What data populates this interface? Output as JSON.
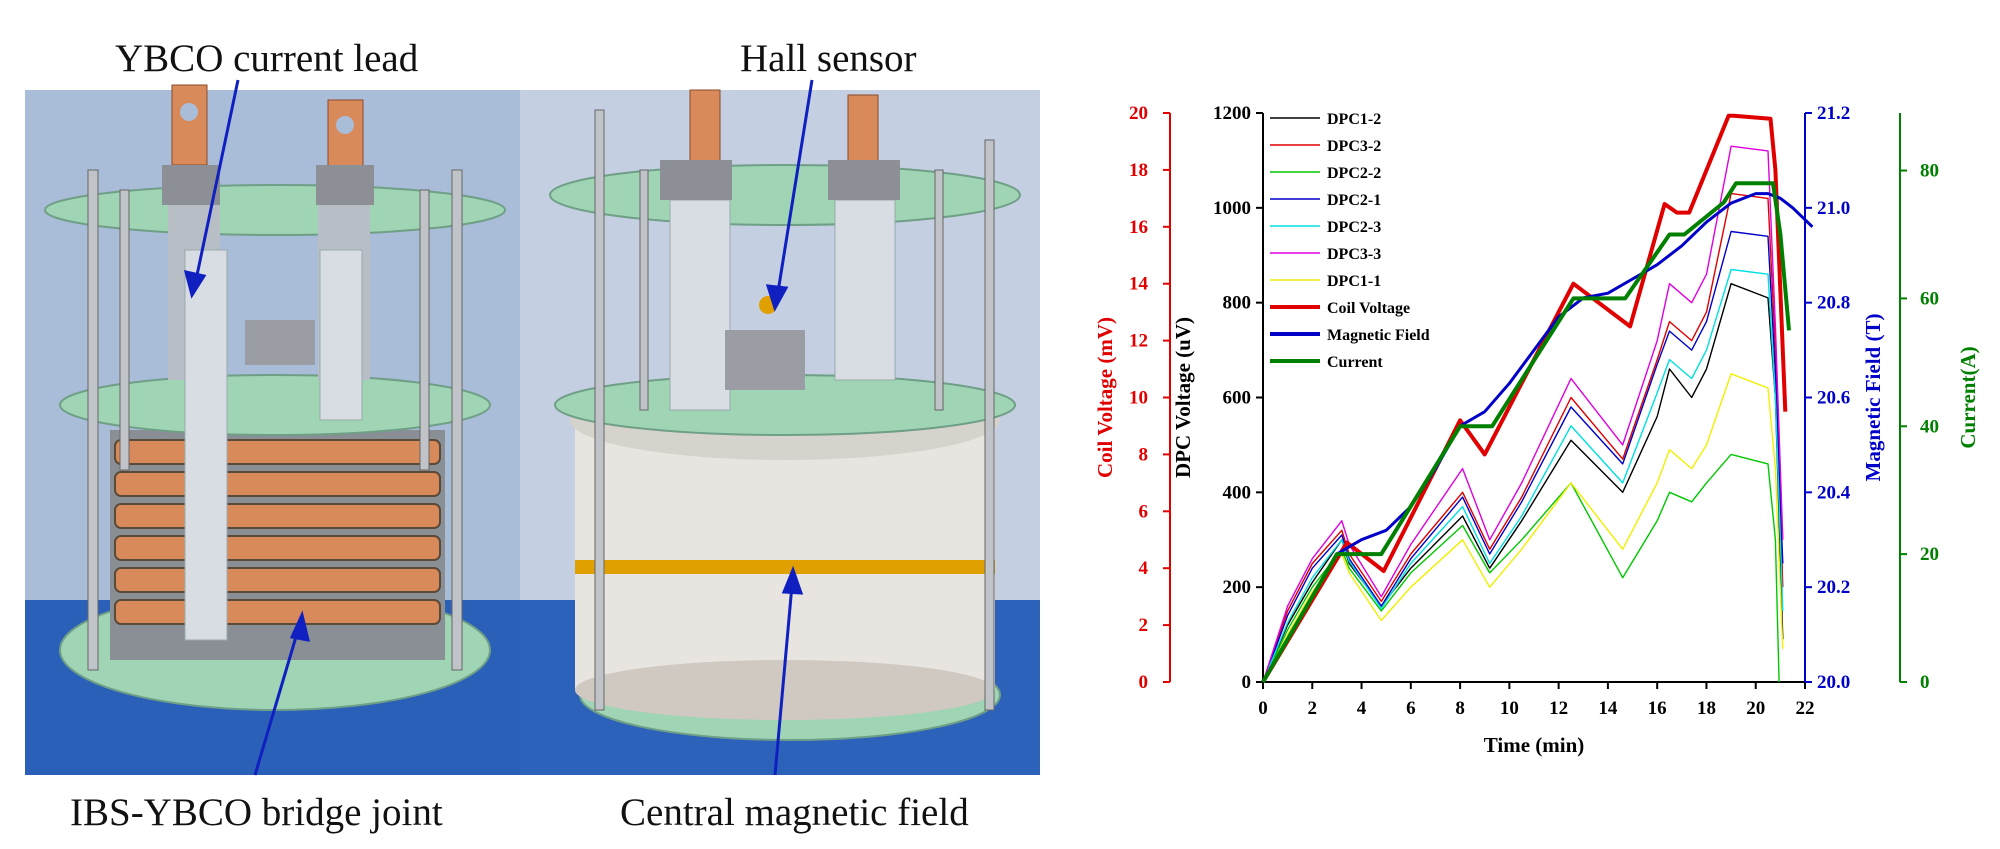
{
  "photo": {
    "labels": {
      "ybco_lead": "YBCO current lead",
      "hall_sensor": "Hall sensor",
      "bridge_joint": "IBS-YBCO bridge joint",
      "central_field": "Central magnetic field"
    },
    "colors": {
      "background": "#9fb6d6",
      "plate": "#9fd4b4",
      "copper": "#d98a5a",
      "foil": "#cfd6de",
      "coil": "#e8e4e0",
      "tape": "#e0a000",
      "arrow": "#1020c0"
    }
  },
  "chart_data": {
    "type": "line",
    "xlabel": "Time (min)",
    "xlim": [
      0,
      22
    ],
    "xticks": [
      0,
      2,
      4,
      6,
      8,
      10,
      12,
      14,
      16,
      18,
      20,
      22
    ],
    "axes": {
      "coil": {
        "label": "Coil Voltage (mV)",
        "lim": [
          0,
          20
        ],
        "ticks": [
          0,
          2,
          4,
          6,
          8,
          10,
          12,
          14,
          16,
          18,
          20
        ],
        "color": "#e00000"
      },
      "dpc": {
        "label": "DPC Voltage (uV)",
        "lim": [
          0,
          1200
        ],
        "ticks": [
          0,
          200,
          400,
          600,
          800,
          1000,
          1200
        ],
        "color": "#000000"
      },
      "field": {
        "label": "Magnetic Field (T)",
        "lim": [
          20.0,
          21.2
        ],
        "ticks": [
          "20.0",
          "20.2",
          "20.4",
          "20.6",
          "20.8",
          "21.0",
          "21.2"
        ],
        "color": "#0000c8"
      },
      "current": {
        "label": "Current(A)",
        "lim": [
          0,
          89
        ],
        "ticks": [
          0,
          20,
          40,
          60,
          80
        ],
        "color": "#008000"
      }
    },
    "series": [
      {
        "name": "DPC1-2",
        "axis": "dpc",
        "color": "#000000",
        "width": 1.4,
        "x": [
          0,
          1,
          2,
          3.2,
          3.5,
          4.8,
          6,
          8.1,
          9.2,
          10.5,
          12.5,
          14.6,
          16,
          16.5,
          17.4,
          18,
          19,
          20.5,
          20.8,
          21.1
        ],
        "y": [
          0,
          120,
          210,
          300,
          250,
          160,
          240,
          350,
          240,
          340,
          510,
          400,
          560,
          660,
          600,
          660,
          840,
          810,
          600,
          90
        ]
      },
      {
        "name": "DPC3-2",
        "axis": "dpc",
        "color": "#e00000",
        "width": 1.4,
        "x": [
          0,
          1,
          2,
          3.2,
          3.5,
          4.8,
          6,
          8.1,
          9.2,
          10.5,
          12.5,
          14.6,
          16,
          16.5,
          17.4,
          18,
          19,
          20.5,
          20.8,
          21.1
        ],
        "y": [
          0,
          150,
          250,
          320,
          270,
          170,
          270,
          400,
          280,
          390,
          600,
          470,
          680,
          760,
          720,
          780,
          1030,
          1020,
          700,
          200
        ]
      },
      {
        "name": "DPC2-2",
        "axis": "dpc",
        "color": "#00c800",
        "width": 1.4,
        "x": [
          0,
          1,
          2,
          3.2,
          3.5,
          4.8,
          6,
          8.1,
          9.2,
          10.5,
          12.5,
          14.6,
          16,
          16.5,
          17.4,
          18,
          19,
          20.5,
          20.8,
          20.95
        ],
        "y": [
          0,
          110,
          200,
          280,
          240,
          150,
          230,
          330,
          230,
          300,
          420,
          220,
          340,
          400,
          380,
          420,
          480,
          460,
          300,
          0
        ]
      },
      {
        "name": "DPC2-1",
        "axis": "dpc",
        "color": "#0000c8",
        "width": 1.4,
        "x": [
          0,
          1,
          2,
          3.2,
          3.5,
          4.8,
          6,
          8.1,
          9.2,
          10.5,
          12.5,
          14.6,
          16,
          16.5,
          17.4,
          18,
          19,
          20.5,
          20.8,
          21.1
        ],
        "y": [
          0,
          140,
          240,
          310,
          260,
          160,
          260,
          390,
          270,
          380,
          580,
          460,
          670,
          740,
          700,
          760,
          950,
          940,
          650,
          250
        ]
      },
      {
        "name": "DPC2-3",
        "axis": "dpc",
        "color": "#00e0e0",
        "width": 1.4,
        "x": [
          0,
          1,
          2,
          3.2,
          3.5,
          4.8,
          6,
          8.1,
          9.2,
          10.5,
          12.5,
          14.6,
          16,
          16.5,
          17.4,
          18,
          19,
          20.5,
          20.8,
          21.1
        ],
        "y": [
          0,
          125,
          220,
          300,
          255,
          155,
          250,
          370,
          250,
          350,
          540,
          420,
          610,
          680,
          640,
          700,
          870,
          860,
          600,
          150
        ]
      },
      {
        "name": "DPC3-3",
        "axis": "dpc",
        "color": "#e000e0",
        "width": 1.4,
        "x": [
          0,
          1,
          2,
          3.2,
          3.5,
          4.8,
          6,
          8.1,
          9.2,
          10.5,
          12.5,
          14.6,
          16,
          16.5,
          17.4,
          18,
          19,
          20.5,
          20.8,
          21.1
        ],
        "y": [
          0,
          160,
          260,
          340,
          290,
          180,
          290,
          450,
          300,
          420,
          640,
          500,
          720,
          840,
          800,
          860,
          1130,
          1120,
          750,
          300
        ]
      },
      {
        "name": "DPC1-1",
        "axis": "dpc",
        "color": "#f0f000",
        "width": 1.4,
        "x": [
          0,
          1,
          2,
          3.2,
          3.5,
          4.8,
          6,
          8.1,
          9.2,
          10.5,
          12.5,
          14.6,
          16,
          16.5,
          17.4,
          18,
          19,
          20.5,
          20.8,
          21.1
        ],
        "y": [
          0,
          100,
          190,
          270,
          230,
          130,
          200,
          300,
          200,
          280,
          420,
          280,
          420,
          490,
          450,
          500,
          650,
          620,
          450,
          70
        ]
      },
      {
        "name": "Coil Voltage",
        "axis": "coil",
        "color": "#e00000",
        "width": 4,
        "x": [
          0,
          3.4,
          4.9,
          8,
          9,
          12.6,
          14.9,
          16.3,
          16.8,
          17.3,
          18.9,
          19.1,
          20.6,
          20.8,
          21.2
        ],
        "y": [
          0,
          4.9,
          3.9,
          9.2,
          8.0,
          14.0,
          12.5,
          16.8,
          16.5,
          16.5,
          19.9,
          19.9,
          19.8,
          18.0,
          9.5
        ]
      },
      {
        "name": "Magnetic Field",
        "axis": "field",
        "color": "#0000c8",
        "width": 3,
        "x": [
          0,
          3,
          4,
          5,
          6,
          7,
          8,
          9,
          10,
          11,
          12,
          13,
          14,
          15,
          16,
          17,
          18,
          19,
          20,
          20.5,
          21,
          21.5,
          22.3
        ],
        "y": [
          20.0,
          20.27,
          20.3,
          20.32,
          20.37,
          20.45,
          20.54,
          20.57,
          20.63,
          20.7,
          20.77,
          20.81,
          20.82,
          20.85,
          20.88,
          20.92,
          20.97,
          21.01,
          21.03,
          21.03,
          21.02,
          21.0,
          20.96
        ]
      },
      {
        "name": "Current",
        "axis": "current",
        "color": "#008000",
        "width": 4,
        "x": [
          0,
          3,
          4.8,
          8,
          9.3,
          12.6,
          14.7,
          16.5,
          17.1,
          18.7,
          19.2,
          20.7,
          21.0,
          21.35
        ],
        "y": [
          0,
          20,
          20,
          40,
          40,
          60,
          60,
          70,
          70,
          75,
          78,
          78,
          70,
          55
        ]
      }
    ]
  }
}
